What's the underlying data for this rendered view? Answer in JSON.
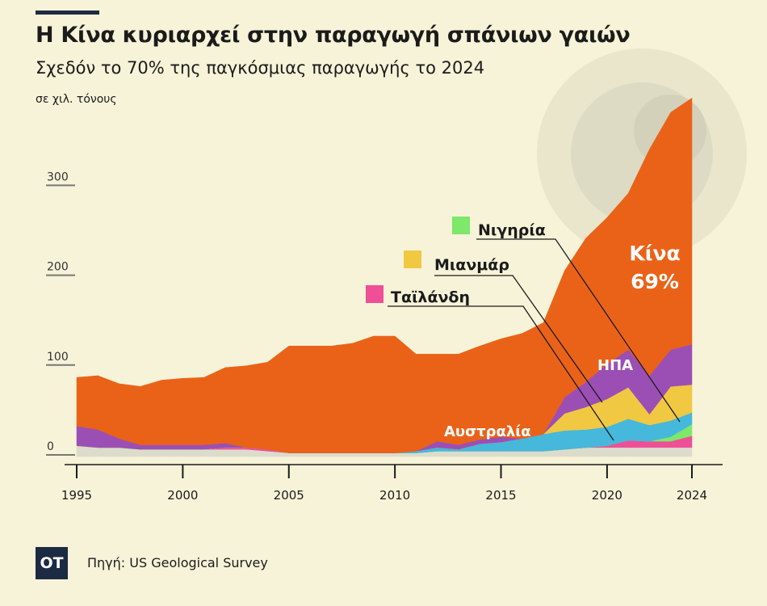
{
  "title": "Η Κίνα κυριαρχεί στην παραγωγή σπάνιων γαιών",
  "subtitle": "Σχεδόν το 70% της παγκόσμιας παραγωγής το 2024",
  "footer": {
    "logo": "OT",
    "source": "Πηγή: US Geological Survey"
  },
  "chart_data": {
    "type": "area",
    "stacked": true,
    "ylabel": "σε χιλ. τόνους",
    "ylim": [
      0,
      400
    ],
    "yticks": [
      "0",
      "100",
      "200",
      "300"
    ],
    "xticks": [
      "1995",
      "2000",
      "2005",
      "2010",
      "2015",
      "2020",
      "2024"
    ],
    "x": [
      1995,
      1996,
      1997,
      1998,
      1999,
      2000,
      2001,
      2002,
      2003,
      2004,
      2005,
      2006,
      2007,
      2008,
      2009,
      2010,
      2011,
      2012,
      2013,
      2014,
      2015,
      2016,
      2017,
      2018,
      2019,
      2020,
      2021,
      2022,
      2023,
      2024
    ],
    "series": [
      {
        "key": "other",
        "name": "",
        "color": "#dcdccc",
        "values": [
          12,
          10,
          10,
          8,
          8,
          8,
          8,
          8,
          8,
          6,
          4,
          4,
          4,
          4,
          4,
          4,
          4,
          6,
          6,
          6,
          6,
          6,
          6,
          8,
          10,
          10,
          10,
          10,
          10,
          10
        ]
      },
      {
        "key": "thailand",
        "name": "Ταϊλάνδη",
        "color": "#ee4f96",
        "values": [
          0,
          0,
          0,
          0,
          0,
          0,
          0,
          2,
          2,
          2,
          0,
          0,
          0,
          0,
          0,
          0,
          0,
          0,
          0,
          0,
          0,
          0,
          0,
          0,
          0,
          2,
          8,
          7,
          7,
          13
        ]
      },
      {
        "key": "nigeria",
        "name": "Νιγηρία",
        "color": "#7de86a",
        "values": [
          0,
          0,
          0,
          0,
          0,
          0,
          0,
          0,
          0,
          0,
          0,
          0,
          0,
          0,
          0,
          0,
          0,
          0,
          0,
          0,
          0,
          0,
          0,
          0,
          0,
          0,
          0,
          0,
          5,
          13
        ]
      },
      {
        "key": "australia",
        "name": "Αυστραλία",
        "color": "#45b8dc",
        "values": [
          0,
          0,
          0,
          0,
          0,
          0,
          0,
          0,
          0,
          0,
          0,
          0,
          0,
          0,
          0,
          0,
          2,
          4,
          2,
          8,
          10,
          14,
          19,
          21,
          20,
          21,
          24,
          18,
          18,
          13
        ]
      },
      {
        "key": "myanmar",
        "name": "Μιανμάρ",
        "color": "#f1c842",
        "values": [
          0,
          0,
          0,
          0,
          0,
          0,
          0,
          0,
          0,
          0,
          0,
          0,
          0,
          0,
          0,
          0,
          0,
          0,
          0,
          0,
          0,
          0,
          0,
          19,
          25,
          31,
          35,
          12,
          38,
          31
        ]
      },
      {
        "key": "usa",
        "name": "ΗΠΑ",
        "color": "#9b4fb5",
        "values": [
          22,
          20,
          10,
          5,
          5,
          5,
          5,
          5,
          0,
          0,
          0,
          0,
          0,
          0,
          0,
          0,
          0,
          7,
          5,
          5,
          6,
          0,
          0,
          18,
          28,
          39,
          42,
          43,
          41,
          45
        ]
      },
      {
        "key": "china",
        "name": "Κίνα",
        "color": "#ea6218",
        "values": [
          54,
          60,
          61,
          65,
          72,
          74,
          75,
          84,
          91,
          97,
          119,
          119,
          119,
          122,
          130,
          130,
          108,
          97,
          101,
          104,
          109,
          117,
          124,
          141,
          160,
          163,
          174,
          252,
          264,
          274
        ]
      }
    ],
    "annotations": {
      "china_share": "69%"
    }
  }
}
